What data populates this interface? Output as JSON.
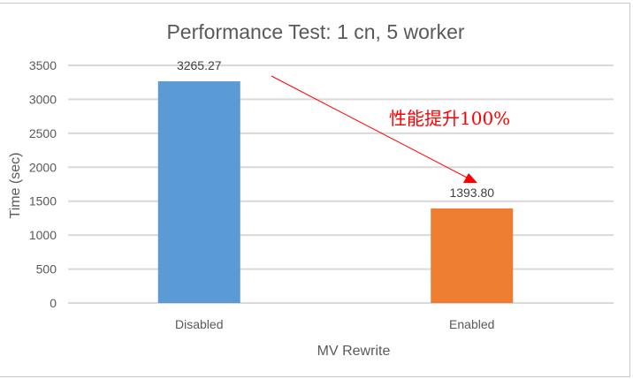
{
  "chart_data": {
    "type": "bar",
    "title": "Performance Test: 1 cn, 5 worker",
    "xlabel": "MV Rewrite",
    "ylabel": "Time (sec)",
    "categories": [
      "Disabled",
      "Enabled"
    ],
    "values": [
      3265.27,
      1393.8
    ],
    "value_labels": [
      "3265.27",
      "1393.80"
    ],
    "colors": [
      "#5B9BD5",
      "#ED7D31"
    ],
    "ylim": [
      0,
      3500
    ],
    "yticks": [
      "0",
      "500",
      "1000",
      "1500",
      "2000",
      "2500",
      "3000",
      "3500"
    ],
    "grid": true,
    "annotation": {
      "text": "性能提升100%",
      "color": "#FF0000"
    }
  }
}
